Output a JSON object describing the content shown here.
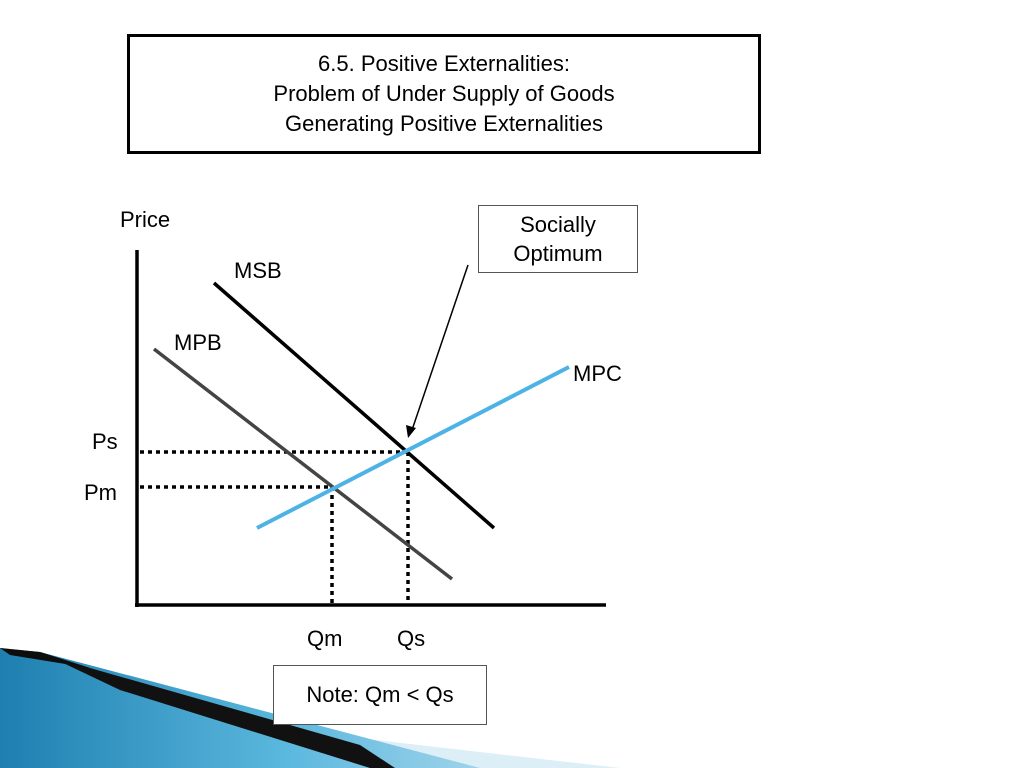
{
  "title": {
    "line1": "6.5. Positive Externalities:",
    "line2": "Problem of Under Supply of Goods",
    "line3": "Generating Positive Externalities"
  },
  "axis": {
    "y_label": "Price"
  },
  "curves": {
    "msb": {
      "label": "MSB",
      "color": "#000000"
    },
    "mpb": {
      "label": "MPB",
      "color": "#444444"
    },
    "mpc": {
      "label": "MPC",
      "color": "#4DB3E6"
    }
  },
  "levels": {
    "ps": "Ps",
    "pm": "Pm",
    "qm": "Qm",
    "qs": "Qs"
  },
  "callout": {
    "line1": "Socially",
    "line2": "Optimum"
  },
  "note": "Note:  Qm < Qs",
  "colors": {
    "accent": "#4DB3E6",
    "deco_blue": "#1E7FB0",
    "deco_light": "#CDE6F2"
  }
}
